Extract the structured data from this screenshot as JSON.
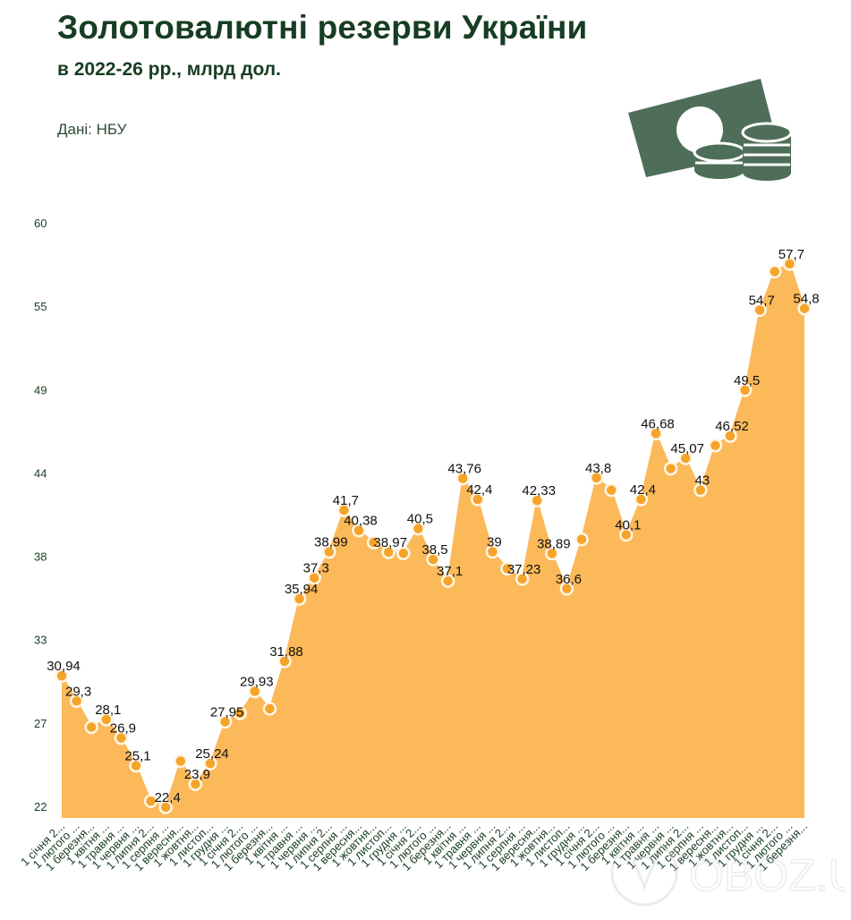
{
  "header": {
    "title": "Золотовалютні резерви України",
    "subtitle": "в 2022-26 рр., млрд дол.",
    "source": "Дані: НБУ"
  },
  "icon": "money-coins-icon",
  "watermark": "OBOZ.UA",
  "colors": {
    "title": "#173d23",
    "area_fill": "#fbb95a",
    "marker": "#f5a42a",
    "marker_stroke": "#fff6e6",
    "icon": "#4f6e5a"
  },
  "chart_data": {
    "type": "area",
    "title": "Золотовалютні резерви України",
    "subtitle": "в 2022-26 рр., млрд дол.",
    "xlabel": "",
    "ylabel": "млрд дол.",
    "ylim": [
      22,
      60
    ],
    "y_ticks": [
      22,
      27,
      33,
      38,
      44,
      49,
      55,
      60
    ],
    "grid": false,
    "legend": null,
    "categories": [
      "1 січня 2...",
      "1 лютого ...",
      "1 березня...",
      "1 квітня ...",
      "1 травня ...",
      "1 червня ...",
      "1 липня 2...",
      "1 серпня ...",
      "1 вересня...",
      "1 жовтня...",
      "1 листоп...",
      "1 грудня ...",
      "1 січня 2...",
      "1 лютого ...",
      "1 березня...",
      "1 квітня ...",
      "1 травня ...",
      "1 червня ...",
      "1 липня 2...",
      "1 серпня ...",
      "1 вересня...",
      "1 жовтня...",
      "1 листоп...",
      "1 грудня ...",
      "1 січня 2...",
      "1 лютого ...",
      "1 березня...",
      "1 квітня ...",
      "1 травня ...",
      "1 червня ...",
      "1 липня 2...",
      "1 серпня ...",
      "1 вересня...",
      "1 жовтня...",
      "1 листоп...",
      "1 грудня ...",
      "1 січня 2...",
      "1 лютого ...",
      "1 березня...",
      "1 квітня ...",
      "1 травня ...",
      "1 червня ...",
      "1 липня 2...",
      "1 серпня ...",
      "1 вересня...",
      "1 жовтня...",
      "1 листоп...",
      "1 грудня ...",
      "1 січня 2...",
      "1 лютого ...",
      "1 березня..."
    ],
    "values": [
      30.94,
      29.3,
      27.6,
      28.1,
      26.9,
      25.1,
      22.8,
      22.4,
      25.4,
      23.9,
      25.24,
      27.95,
      28.5,
      29.93,
      28.8,
      31.88,
      35.94,
      37.3,
      38.99,
      41.7,
      40.38,
      39.6,
      38.97,
      38.9,
      40.5,
      38.5,
      37.1,
      43.76,
      42.4,
      39,
      37.9,
      37.23,
      42.33,
      38.89,
      36.6,
      39.8,
      43.8,
      43.0,
      40.1,
      42.4,
      46.68,
      44.4,
      45.07,
      43,
      45.9,
      46.52,
      49.5,
      54.7,
      57.2,
      57.7,
      54.8
    ],
    "labels": [
      "30,94",
      "29,3",
      "",
      "28,1",
      "26,9",
      "25,1",
      "",
      "22,4",
      "",
      "23,9",
      "25,24",
      "27,95",
      "",
      "29,93",
      "",
      "31,88",
      "35,94",
      "37,3",
      "38,99",
      "41,7",
      "40,38",
      "",
      "38,97",
      "",
      "40,5",
      "38,5",
      "37,1",
      "43,76",
      "42,4",
      "39",
      "",
      "37,23",
      "42,33",
      "38,89",
      "36,6",
      "",
      "43,8",
      "",
      "40,1",
      "42,4",
      "46,68",
      "",
      "45,07",
      "43",
      "",
      "46,52",
      "49,5",
      "54,7",
      "",
      "57,7",
      "54,8"
    ]
  }
}
